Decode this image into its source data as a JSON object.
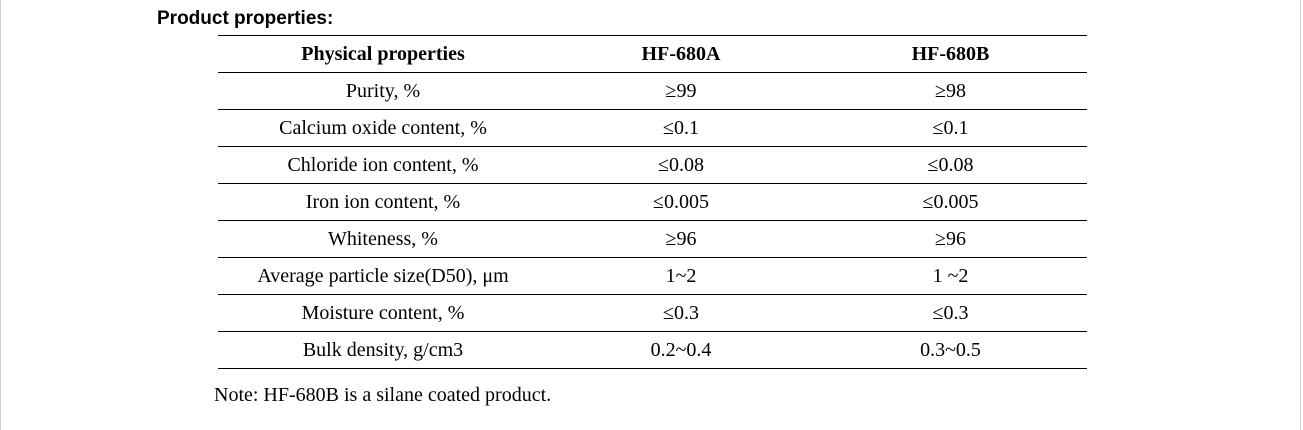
{
  "heading": "Product properties:",
  "table": {
    "headers": [
      "Physical properties",
      "HF-680A",
      "HF-680B"
    ],
    "rows": [
      [
        "Purity, %",
        "≥99",
        "≥98"
      ],
      [
        "Calcium oxide content, %",
        "≤0.1",
        "≤0.1"
      ],
      [
        "Chloride ion content, %",
        "≤0.08",
        "≤0.08"
      ],
      [
        "Iron ion content, %",
        "≤0.005",
        "≤0.005"
      ],
      [
        "Whiteness, %",
        "≥96",
        "≥96"
      ],
      [
        "Average particle size(D50), μm",
        "1~2",
        "1 ~2"
      ],
      [
        "Moisture content, %",
        "≤0.3",
        "≤0.3"
      ],
      [
        "Bulk density, g/cm3",
        "0.2~0.4",
        "0.3~0.5"
      ]
    ]
  },
  "note": "Note: HF-680B is a silane coated product."
}
